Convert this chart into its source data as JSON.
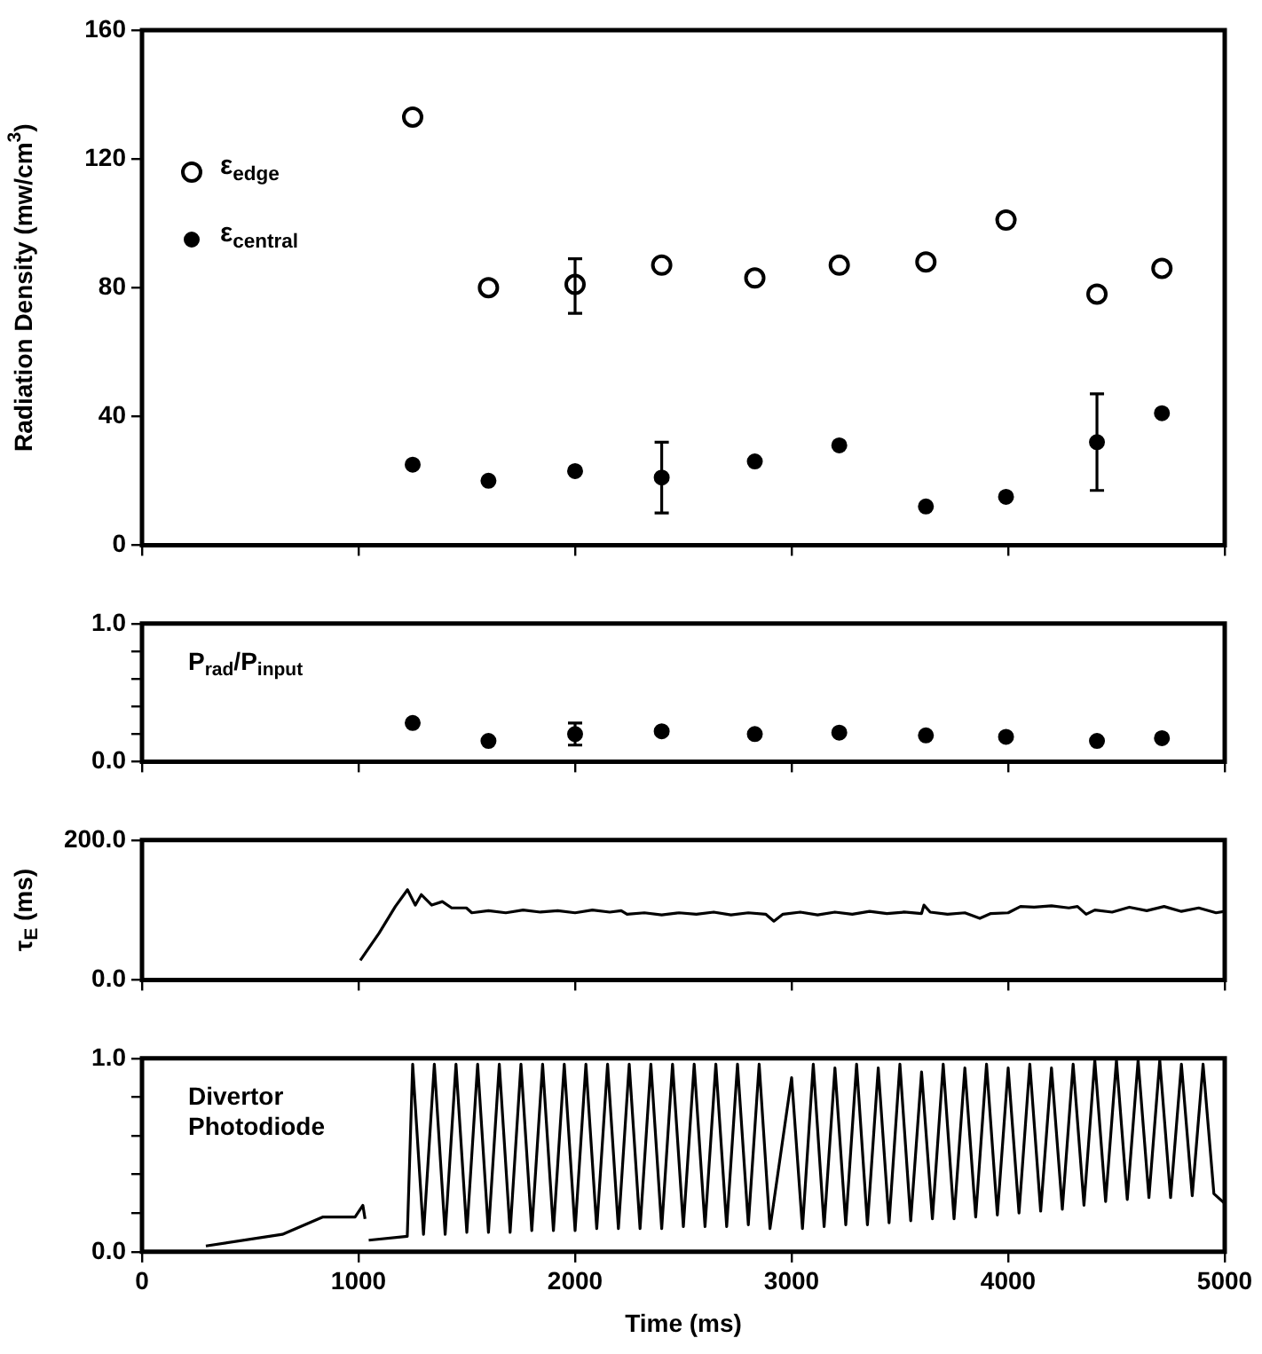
{
  "chart_data": [
    {
      "type": "scatter",
      "ylabel": "Radiation Density (mw/cm$^{3}$)",
      "xlim": [
        0,
        5000
      ],
      "xticks": [
        0,
        1000,
        2000,
        3000,
        4000,
        5000
      ],
      "ylim": [
        0,
        160
      ],
      "yticks": [
        0,
        40,
        80,
        120,
        160
      ],
      "tick_labels": "y",
      "grid": false,
      "legend": "top left",
      "marker": "circle",
      "x": [
        1250,
        1600,
        2000,
        2400,
        2830,
        3220,
        3620,
        3990,
        4410,
        4710
      ],
      "series": [
        {
          "name": "ε$_{edge}$",
          "color": "#000000",
          "values": [
            133,
            80,
            81,
            87,
            83,
            87,
            88,
            101,
            78,
            86
          ],
          "errors": [
            null,
            null,
            [
              72,
              89
            ],
            null,
            null,
            null,
            null,
            null,
            null,
            null
          ]
        },
        {
          "name": "ε$_{central}$",
          "color": "#000000",
          "values": [
            25,
            20,
            23,
            21,
            26,
            31,
            12,
            15,
            32,
            41
          ],
          "errors": [
            null,
            null,
            null,
            [
              10,
              32
            ],
            null,
            null,
            null,
            null,
            [
              17,
              47
            ],
            null
          ]
        }
      ]
    },
    {
      "type": "scatter",
      "annotations": [
        "P$_{rad}$/P$_{input}$"
      ],
      "xlim": [
        0,
        5000
      ],
      "xticks": [
        0,
        1000,
        2000,
        3000,
        4000,
        5000
      ],
      "ylim": [
        0,
        1
      ],
      "yticks": [
        {
          "value": 0,
          "label": "0.0"
        },
        {
          "value": 0.2,
          "label": null
        },
        {
          "value": 0.4,
          "label": null
        },
        {
          "value": 0.6,
          "label": null
        },
        {
          "value": 0.8,
          "label": null
        },
        {
          "value": 1,
          "label": "1.0"
        }
      ],
      "tick_labels": "y",
      "grid": false,
      "marker": "circle",
      "x": [
        1250,
        1600,
        2000,
        2400,
        2830,
        3220,
        3620,
        3990,
        4410,
        4710
      ],
      "series": [
        {
          "color": "#000000",
          "values": [
            0.28,
            0.15,
            0.2,
            0.22,
            0.2,
            0.21,
            0.19,
            0.18,
            0.15,
            0.17
          ],
          "errors": [
            null,
            null,
            [
              0.12,
              0.28
            ],
            null,
            null,
            null,
            null,
            null,
            null,
            null
          ]
        }
      ]
    },
    {
      "type": "line",
      "ylabel": "τ$_{E}$ (ms)",
      "xlim": [
        0,
        5000
      ],
      "xticks": [
        0,
        1000,
        2000,
        3000,
        4000,
        5000
      ],
      "ylim": [
        0,
        200
      ],
      "yticks": [
        {
          "value": 0,
          "label": "0.0"
        },
        {
          "value": 200,
          "label": "200.0"
        }
      ],
      "tick_labels": "y",
      "grid": false,
      "marker": "none",
      "line_style": "solid",
      "series": [
        {
          "color": "#000000",
          "x": [
            1008,
            1095,
            1170,
            1226,
            1262,
            1290,
            1338,
            1387,
            1430,
            1498,
            1523,
            1600,
            1680,
            1760,
            1840,
            1920,
            2000,
            2080,
            2160,
            2213,
            2240,
            2320,
            2400,
            2480,
            2560,
            2640,
            2720,
            2800,
            2880,
            2918,
            2960,
            3040,
            3120,
            3200,
            3280,
            3360,
            3440,
            3520,
            3600,
            3611,
            3640,
            3720,
            3800,
            3869,
            3920,
            4000,
            4057,
            4120,
            4200,
            4280,
            4320,
            4360,
            4400,
            4480,
            4560,
            4640,
            4720,
            4800,
            4880,
            4960,
            5000
          ],
          "values": [
            28,
            67,
            105,
            129,
            107,
            122,
            107,
            112,
            103,
            103,
            96,
            99,
            96,
            100,
            97,
            99,
            96,
            100,
            97,
            99,
            94,
            96,
            93,
            96,
            94,
            97,
            93,
            96,
            94,
            84,
            94,
            97,
            93,
            97,
            94,
            98,
            95,
            97,
            95,
            107,
            97,
            94,
            96,
            88,
            95,
            96,
            105,
            104,
            106,
            103,
            105,
            94,
            100,
            97,
            104,
            99,
            105,
            98,
            103,
            96,
            98
          ]
        }
      ]
    },
    {
      "type": "line",
      "xlabel": "Time (ms)",
      "annotations": [
        "Divertor Photodiode"
      ],
      "xlim": [
        0,
        5000
      ],
      "xticks": [
        0,
        1000,
        2000,
        3000,
        4000,
        5000
      ],
      "ylim": [
        0,
        1
      ],
      "yticks": [
        {
          "value": 0,
          "label": "0.0"
        },
        {
          "value": 0.2,
          "label": null
        },
        {
          "value": 0.4,
          "label": null
        },
        {
          "value": 0.6,
          "label": null
        },
        {
          "value": 0.8,
          "label": null
        },
        {
          "value": 1,
          "label": "1.0"
        }
      ],
      "grid": false,
      "marker": "none",
      "line_style": "solid",
      "series": [
        {
          "color": "#000000",
          "x": [
            295,
            648,
            836,
            984,
            1020,
            1030,
            1035,
            1047,
            1225,
            1250,
            1300,
            1350,
            1400,
            1450,
            1500,
            1550,
            1600,
            1650,
            1700,
            1750,
            1800,
            1850,
            1900,
            1950,
            2000,
            2050,
            2100,
            2150,
            2200,
            2250,
            2300,
            2350,
            2400,
            2450,
            2500,
            2550,
            2600,
            2650,
            2700,
            2750,
            2800,
            2850,
            2900,
            3000,
            3050,
            3100,
            3150,
            3200,
            3250,
            3300,
            3350,
            3400,
            3450,
            3500,
            3550,
            3600,
            3650,
            3700,
            3750,
            3800,
            3850,
            3900,
            3950,
            4000,
            4050,
            4100,
            4150,
            4200,
            4250,
            4300,
            4350,
            4400,
            4450,
            4500,
            4550,
            4600,
            4650,
            4700,
            4750,
            4800,
            4850,
            4900,
            4950,
            5000
          ],
          "values": [
            0.03,
            0.09,
            0.18,
            0.18,
            0.24,
            0.17,
            null,
            0.06,
            0.08,
            0.97,
            0.09,
            0.97,
            0.09,
            0.97,
            0.1,
            0.97,
            0.1,
            0.97,
            0.1,
            0.97,
            0.11,
            0.97,
            0.11,
            0.97,
            0.11,
            0.97,
            0.12,
            0.97,
            0.12,
            0.97,
            0.12,
            0.97,
            0.12,
            0.97,
            0.13,
            0.97,
            0.13,
            0.97,
            0.13,
            0.97,
            0.14,
            0.97,
            0.12,
            0.9,
            0.12,
            0.97,
            0.13,
            0.95,
            0.14,
            0.97,
            0.14,
            0.95,
            0.15,
            0.97,
            0.16,
            0.93,
            0.17,
            0.97,
            0.17,
            0.95,
            0.18,
            0.97,
            0.19,
            0.95,
            0.2,
            0.97,
            0.21,
            0.95,
            0.22,
            0.97,
            0.24,
            0.99,
            0.26,
            0.99,
            0.27,
            0.99,
            0.28,
            0.99,
            0.28,
            0.97,
            0.29,
            0.97,
            0.3,
            0.25
          ]
        }
      ]
    }
  ]
}
